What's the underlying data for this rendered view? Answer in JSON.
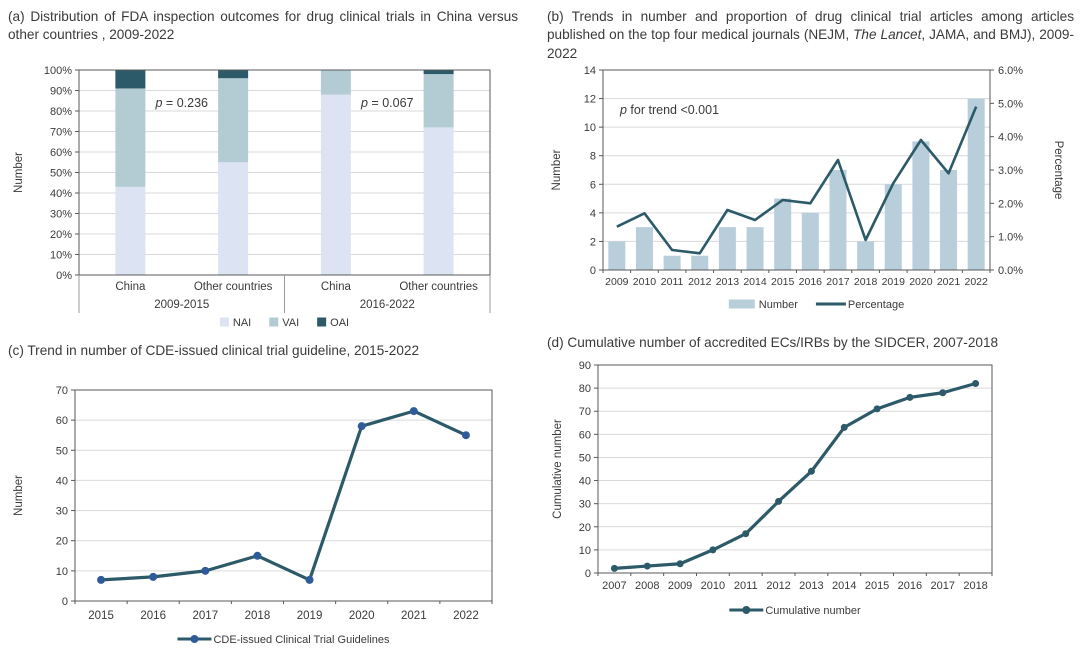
{
  "style": {
    "background": "#ffffff",
    "frame": "#595959",
    "gridline": "#d9d9d9",
    "text": "#3a3a3a",
    "divider": "#9b9b9b"
  },
  "chart_data": [
    {
      "id": "a",
      "type": "bar",
      "subtype": "stacked-100-percent",
      "title": "(a) Distribution of FDA inspection outcomes for drug clinical trials in China versus other countries , 2009-2022",
      "ylabel": "Number",
      "ylim": [
        0,
        100
      ],
      "yticks": [
        "0%",
        "10%",
        "20%",
        "30%",
        "40%",
        "50%",
        "60%",
        "70%",
        "80%",
        "90%",
        "100%"
      ],
      "categories": [
        "China",
        "Other countries",
        "China",
        "Other countries"
      ],
      "group_labels": [
        "2009-2015",
        "2016-2022"
      ],
      "series": [
        {
          "name": "NAI",
          "color": "#dce3f2",
          "values": [
            43,
            55,
            88,
            72
          ]
        },
        {
          "name": "VAI",
          "color": "#b3cbd3",
          "values": [
            48,
            41,
            12,
            26
          ]
        },
        {
          "name": "OAI",
          "color": "#2c5a68",
          "values": [
            9,
            4,
            0,
            2
          ]
        }
      ],
      "annotations": [
        {
          "italic": "p",
          "text": " = 0.236"
        },
        {
          "italic": "p",
          "text": " = 0.067"
        }
      ],
      "grid": "horizontal",
      "legend_position": "bottom"
    },
    {
      "id": "b",
      "type": "bar",
      "subtype": "bar-line-combo-dual-axis",
      "title_prefix": "(b) Trends in number and proportion of drug clinical trial articles among articles published on the top four medical journals (NEJM, ",
      "title_italic": "The Lancet",
      "title_suffix": ", JAMA, and BMJ), 2009-2022",
      "categories": [
        "2009",
        "2010",
        "2011",
        "2012",
        "2013",
        "2014",
        "2015",
        "2016",
        "2017",
        "2018",
        "2019",
        "2020",
        "2021",
        "2022"
      ],
      "ylabel_left": "Number",
      "ylabel_right": "Percentage",
      "ylim_left": [
        0,
        14
      ],
      "ylim_right_percent": [
        0,
        6
      ],
      "yticks_left": [
        "0",
        "2",
        "4",
        "6",
        "8",
        "10",
        "12",
        "14"
      ],
      "yticks_right": [
        "0.0%",
        "1.0%",
        "2.0%",
        "3.0%",
        "4.0%",
        "5.0%",
        "6.0%"
      ],
      "series": [
        {
          "name": "Number",
          "plot": "bar",
          "axis": "left",
          "color": "#b8cedb",
          "values": [
            2,
            3,
            1,
            1,
            3,
            3,
            5,
            4,
            7,
            2,
            6,
            9,
            7,
            12
          ]
        },
        {
          "name": "Percentage",
          "plot": "line",
          "axis": "right",
          "color": "#2c5a68",
          "values_percent": [
            1.3,
            1.7,
            0.6,
            0.5,
            1.8,
            1.5,
            2.1,
            2.0,
            3.3,
            0.9,
            2.6,
            3.9,
            2.9,
            4.9
          ]
        }
      ],
      "annotation": {
        "italic": "p",
        "text": " for trend <0.001"
      },
      "grid": "horizontal",
      "legend_position": "bottom"
    },
    {
      "id": "c",
      "type": "line",
      "title": "(c) Trend in number of CDE-issued clinical trial guideline, 2015-2022",
      "categories": [
        "2015",
        "2016",
        "2017",
        "2018",
        "2019",
        "2020",
        "2021",
        "2022"
      ],
      "values": [
        7,
        8,
        10,
        15,
        7,
        58,
        63,
        55
      ],
      "ylabel": "Number",
      "ylim": [
        0,
        70
      ],
      "yticks": [
        "0",
        "10",
        "20",
        "30",
        "40",
        "50",
        "60",
        "70"
      ],
      "legend": "CDE-issued Clinical Trial Guidelines",
      "line_color": "#2c5a68",
      "marker_color": "#2f5b9b",
      "grid": "horizontal",
      "legend_position": "bottom"
    },
    {
      "id": "d",
      "type": "line",
      "title": "(d) Cumulative number of accredited ECs/IRBs by the SIDCER, 2007-2018",
      "categories": [
        "2007",
        "2008",
        "2009",
        "2010",
        "2011",
        "2012",
        "2013",
        "2014",
        "2015",
        "2016",
        "2017",
        "2018"
      ],
      "values": [
        2,
        3,
        4,
        10,
        17,
        31,
        44,
        63,
        71,
        76,
        78,
        82
      ],
      "ylabel": "Cumulative number",
      "ylim": [
        0,
        90
      ],
      "yticks": [
        "0",
        "10",
        "20",
        "30",
        "40",
        "50",
        "60",
        "70",
        "80",
        "90"
      ],
      "legend": "Cumulative number",
      "line_color": "#2c5a68",
      "marker_color": "#2c5a68",
      "grid": "horizontal",
      "legend_position": "bottom"
    }
  ]
}
